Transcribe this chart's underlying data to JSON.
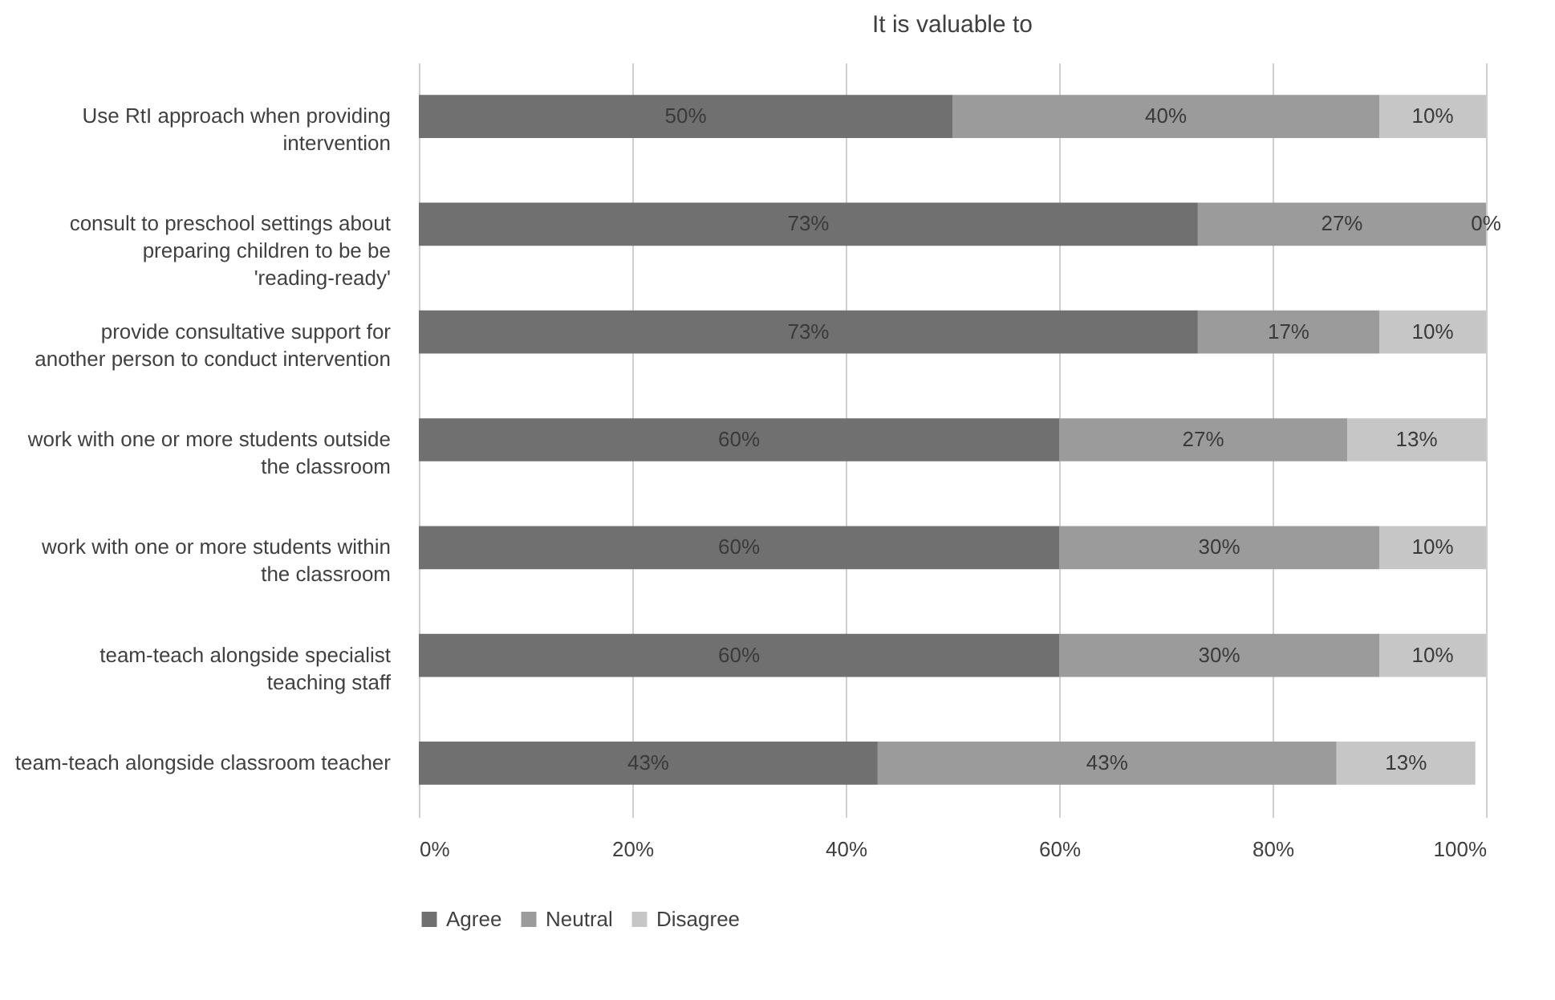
{
  "chart_data": {
    "type": "bar",
    "orientation": "horizontal",
    "stacked": true,
    "title": "It is valuable to",
    "categories": [
      "Use RtI  approach when providing intervention",
      "consult to preschool settings about preparing children to be be 'reading-ready'",
      "provide consultative support for another person to conduct intervention",
      "work with one or more students outside the classroom",
      "work with one or more students within the classroom",
      "team-teach alongside specialist teaching staff",
      "team-teach alongside classroom teacher"
    ],
    "series": [
      {
        "name": "Agree",
        "color": "#707070",
        "values": [
          50,
          73,
          73,
          60,
          60,
          60,
          43
        ],
        "value_labels": [
          "50%",
          "73%",
          "73%",
          "60%",
          "60%",
          "60%",
          "43%"
        ]
      },
      {
        "name": "Neutral",
        "color": "#9b9b9b",
        "values": [
          40,
          27,
          17,
          27,
          30,
          30,
          43
        ],
        "value_labels": [
          "40%",
          "27%",
          "17%",
          "27%",
          "30%",
          "30%",
          "43%"
        ]
      },
      {
        "name": "Disagree",
        "color": "#c6c6c6",
        "values": [
          10,
          0,
          10,
          13,
          10,
          10,
          13
        ],
        "value_labels": [
          "10%",
          "0%",
          "10%",
          "13%",
          "10%",
          "10%",
          "13%"
        ]
      }
    ],
    "xlim": [
      0,
      100
    ],
    "xticks": [
      {
        "value": 0,
        "label": "0%"
      },
      {
        "value": 20,
        "label": "20%"
      },
      {
        "value": 40,
        "label": "40%"
      },
      {
        "value": 60,
        "label": "60%"
      },
      {
        "value": 80,
        "label": "80%"
      },
      {
        "value": 100,
        "label": "100%"
      }
    ],
    "grid": "x",
    "legend": "bottom"
  }
}
